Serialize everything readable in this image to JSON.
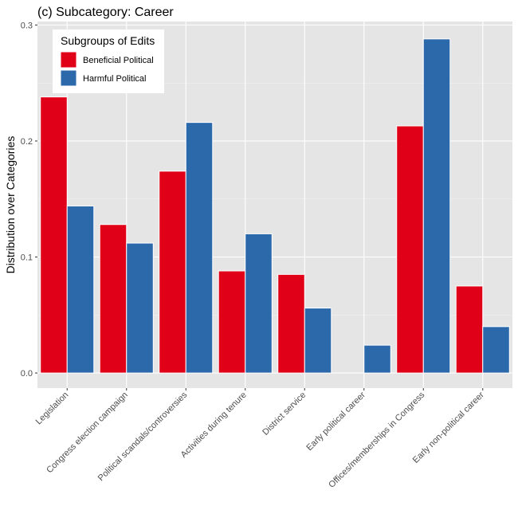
{
  "chart_data": {
    "type": "bar",
    "title": "(c) Subcategory: Career",
    "xlabel": "",
    "ylabel": "Distribution over Categories",
    "ylim": [
      -0.013,
      0.303
    ],
    "yticks": [
      0.0,
      0.1,
      0.2,
      0.3
    ],
    "ytick_labels": [
      "0.0",
      "0.1",
      "0.2",
      "0.3"
    ],
    "grid": true,
    "legend_title": "Subgroups of Edits",
    "legend_position": "top-left",
    "categories": [
      "Legislation",
      "Congress election campaign",
      "Political scandals/controversies",
      "Activities during tenure",
      "District service",
      "Early political career",
      "Offices/memberships in Congress",
      "Early non-political career"
    ],
    "series": [
      {
        "name": "Beneficial Political",
        "color": "#e00018",
        "values": [
          0.238,
          0.128,
          0.174,
          0.088,
          0.085,
          0.0,
          0.213,
          0.075
        ]
      },
      {
        "name": "Harmful Political",
        "color": "#2c69ab",
        "values": [
          0.144,
          0.112,
          0.216,
          0.12,
          0.056,
          0.024,
          0.288,
          0.04
        ]
      }
    ]
  }
}
